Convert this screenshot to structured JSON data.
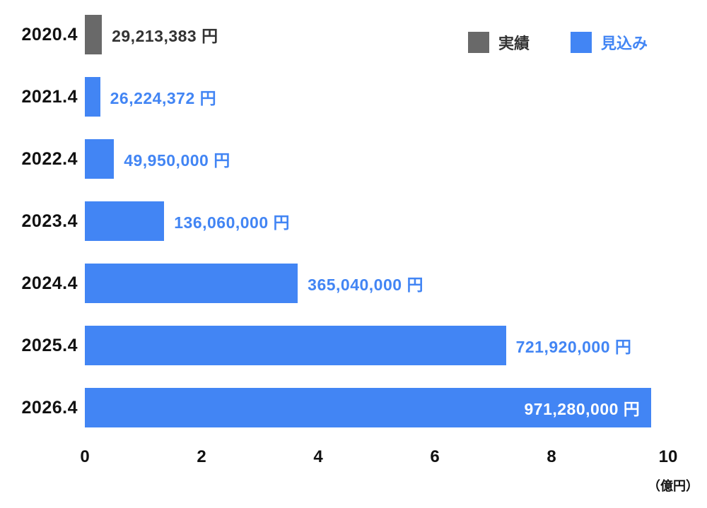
{
  "chart_data": {
    "type": "bar",
    "orientation": "horizontal",
    "categories": [
      "2020.4",
      "2021.4",
      "2022.4",
      "2023.4",
      "2024.4",
      "2025.4",
      "2026.4"
    ],
    "values_yen": [
      29213383,
      26224372,
      49950000,
      136060000,
      365040000,
      721920000,
      971280000
    ],
    "value_labels": [
      "29,213,383 円",
      "26,224,372 円",
      "49,950,000 円",
      "136,060,000 円",
      "365,040,000 円",
      "721,920,000 円",
      "971,280,000 円"
    ],
    "series_type": [
      "actual",
      "forecast",
      "forecast",
      "forecast",
      "forecast",
      "forecast",
      "forecast"
    ],
    "value_label_position": [
      "outside",
      "outside",
      "outside",
      "outside",
      "outside",
      "outside",
      "inside"
    ],
    "xlim": [
      0,
      10
    ],
    "x_ticks": [
      "0",
      "2",
      "4",
      "6",
      "8",
      "10"
    ],
    "x_max_yen": 1000000000,
    "x_unit_label": "（億円）",
    "grid": false,
    "legend_position": "top-right",
    "legend": [
      {
        "label": "実績",
        "series": "actual",
        "swatch_color": "#696969",
        "text_color": "#333333"
      },
      {
        "label": "見込み",
        "series": "forecast",
        "swatch_color": "#4285F4",
        "text_color": "#4285F4"
      }
    ],
    "colors": {
      "actual_bar": "#696969",
      "forecast_bar": "#4285F4",
      "actual_value_text": "#333333",
      "forecast_value_text": "#4285F4",
      "inside_value_text": "#FFFFFF",
      "category_text": "#111111",
      "tick_text": "#111111"
    }
  }
}
